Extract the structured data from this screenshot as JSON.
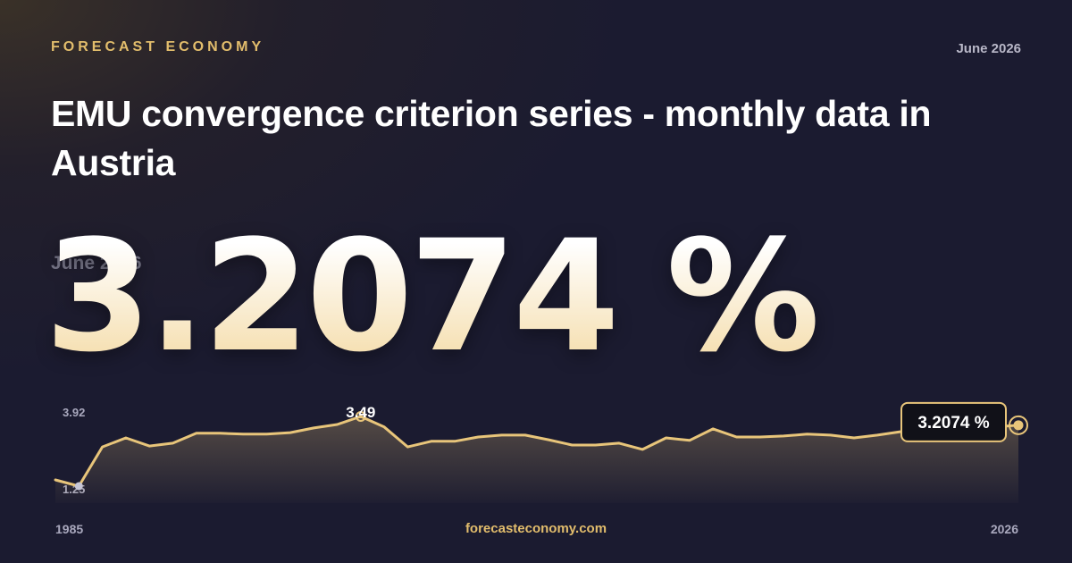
{
  "chart_data": {
    "type": "line",
    "brand": "FORECAST ECONOMY",
    "date": "June 2026",
    "title": "EMU convergence criterion series - monthly data in Austria",
    "latest_label": "3.2074 %",
    "footer": "forecasteconomy.com",
    "x": [
      1985,
      1986,
      1987,
      1988,
      1989,
      1990,
      1991,
      1992,
      1993,
      1994,
      1995,
      1996,
      1997,
      1998,
      1999,
      2000,
      2001,
      2002,
      2003,
      2004,
      2005,
      2006,
      2007,
      2008,
      2009,
      2010,
      2011,
      2012,
      2013,
      2014,
      2015,
      2016,
      2017,
      2018,
      2019,
      2020,
      2021,
      2022,
      2023,
      2024,
      2025,
      2026
    ],
    "values": [
      1.45,
      1.25,
      2.51,
      2.8,
      2.54,
      2.63,
      2.95,
      2.95,
      2.92,
      2.92,
      2.97,
      3.12,
      3.23,
      3.49,
      3.15,
      2.51,
      2.69,
      2.69,
      2.83,
      2.89,
      2.89,
      2.74,
      2.57,
      2.57,
      2.63,
      2.43,
      2.8,
      2.72,
      3.09,
      2.83,
      2.83,
      2.86,
      2.92,
      2.89,
      2.8,
      2.89,
      3.0,
      3.03,
      3.09,
      3.15,
      3.15,
      3.2074
    ],
    "color": "#e8c57a",
    "xlim": [
      1985,
      2026
    ],
    "xticks": [
      1985,
      2026
    ],
    "ylim": [
      1.25,
      3.92
    ],
    "yticks": [
      1.25,
      3.92
    ],
    "peak_index": 13
  }
}
